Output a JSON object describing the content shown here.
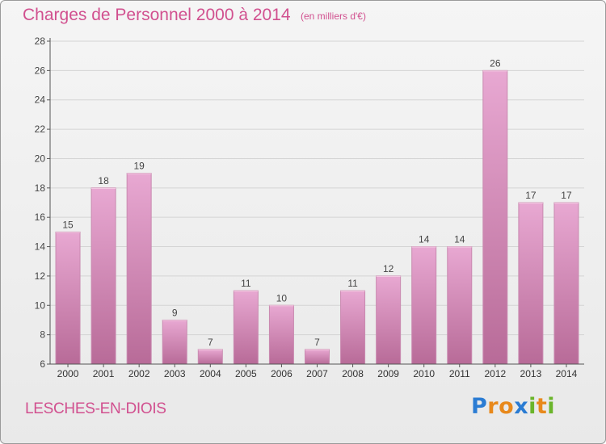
{
  "title": "Charges de Personnel 2000 à 2014",
  "subtitle": "(en milliers d'€)",
  "commune": "LESCHES-EN-DIOIS",
  "logo": {
    "text": "Proxiti",
    "letters": [
      {
        "ch": "P",
        "color": "#2b7cd3"
      },
      {
        "ch": "r",
        "color": "#e8891c"
      },
      {
        "ch": "o",
        "color": "#e8891c"
      },
      {
        "ch": "x",
        "color": "#2b7cd3"
      },
      {
        "ch": "i",
        "color": "#6bb52b"
      },
      {
        "ch": "t",
        "color": "#e8891c"
      },
      {
        "ch": "i",
        "color": "#6bb52b"
      }
    ]
  },
  "colors": {
    "title": "#d1508f",
    "bar_top": "#e8a8d2",
    "bar_bottom": "#b86b98",
    "grid": "#d4d4d4",
    "axis": "#555555"
  },
  "chart_data": {
    "type": "bar",
    "categories": [
      "2000",
      "2001",
      "2002",
      "2003",
      "2004",
      "2005",
      "2006",
      "2007",
      "2008",
      "2009",
      "2010",
      "2011",
      "2012",
      "2013",
      "2014"
    ],
    "values": [
      15,
      18,
      19,
      9,
      7,
      11,
      10,
      7,
      11,
      12,
      14,
      14,
      26,
      17,
      17
    ],
    "data_labels": [
      "15",
      "18",
      "19",
      "9",
      "7",
      "11",
      "10",
      "7",
      "11",
      "12",
      "14",
      "14",
      "26",
      "17",
      "17"
    ],
    "ylim": [
      6,
      28
    ],
    "yticks": [
      6,
      8,
      10,
      12,
      14,
      16,
      18,
      20,
      22,
      24,
      26,
      28
    ],
    "xlabel": "",
    "ylabel": "",
    "grid": true,
    "legend": "none"
  }
}
